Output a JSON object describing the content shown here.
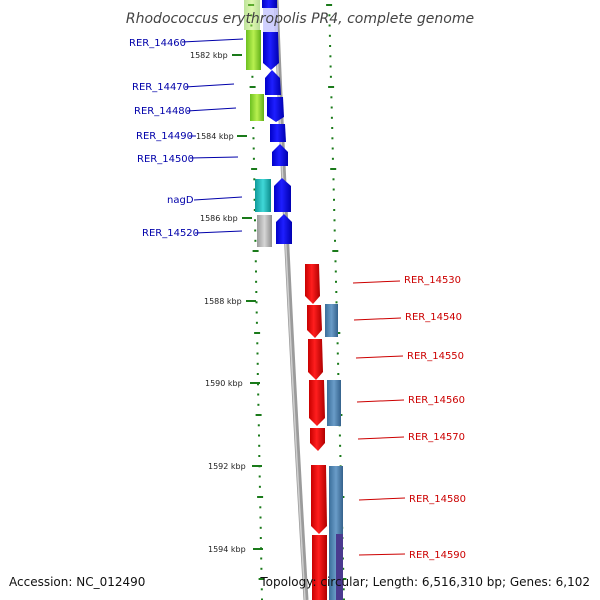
{
  "title": "Rhodococcus erythropolis PR4, complete genome",
  "accession": "Accession: NC_012490",
  "summary": "Topology: circular; Length: 6,516,310 bp; Genes: 6,102",
  "kbp_labels": [
    "1582 kbp",
    "1584 kbp",
    "1586 kbp",
    "1588 kbp",
    "1590 kbp",
    "1592 kbp",
    "1594 kbp"
  ],
  "genes_left": [
    "RER_14460",
    "RER_14470",
    "RER_14480",
    "RER_14490",
    "RER_14500",
    "nagD",
    "RER_14520"
  ],
  "genes_right": [
    "RER_14530",
    "RER_14540",
    "RER_14550",
    "RER_14560",
    "RER_14570",
    "RER_14580",
    "RER_14590"
  ],
  "colors": {
    "forward_gene": "#0a0af0",
    "reverse_gene": "#ee0000",
    "left_label": "#0000aa",
    "right_label": "#cc0000",
    "tick": "#1a7a1a",
    "backbone": "#999999"
  }
}
